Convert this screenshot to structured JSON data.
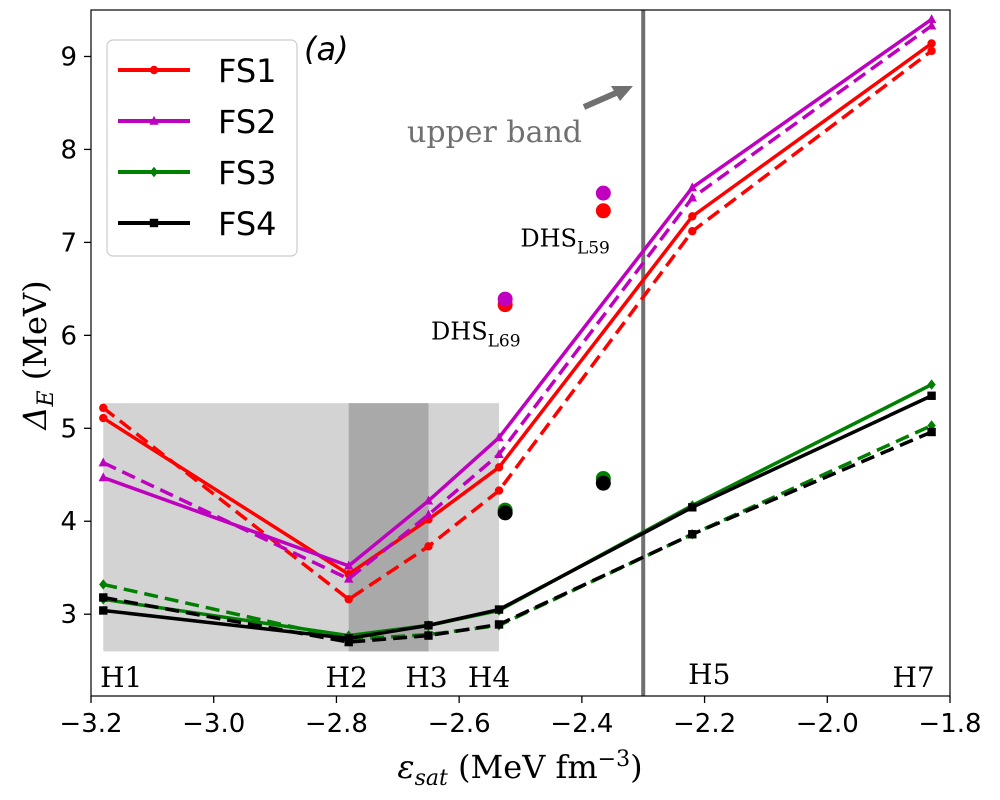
{
  "chart_data": {
    "type": "line",
    "panel_label": "(a)",
    "xlabel": "ε_sat (MeV fm⁻³)",
    "ylabel": "Δ_E (MeV)",
    "xlim": [
      -3.2,
      -1.8
    ],
    "ylim": [
      2.12,
      9.5
    ],
    "x_ticks": [
      -3.2,
      -3.0,
      -2.8,
      -2.6,
      -2.4,
      -2.2,
      -2.0,
      -1.8
    ],
    "x_tick_labels": [
      "−3.2",
      "−3.0",
      "−2.8",
      "−2.6",
      "−2.4",
      "−2.2",
      "−2.0",
      "−1.8"
    ],
    "y_ticks": [
      3,
      4,
      5,
      6,
      7,
      8,
      9
    ],
    "y_tick_labels": [
      "3",
      "4",
      "5",
      "6",
      "7",
      "8",
      "9"
    ],
    "x": [
      -3.18,
      -2.78,
      -2.65,
      -2.535,
      -2.22,
      -1.83
    ],
    "series": [
      {
        "name": "FS1",
        "color": "#ff0000",
        "marker": "circle",
        "solid": [
          5.11,
          3.43,
          4.02,
          4.58,
          7.28,
          9.14
        ],
        "dashed": [
          5.22,
          3.16,
          3.73,
          4.33,
          7.12,
          9.06
        ]
      },
      {
        "name": "FS2",
        "color": "#bf00bf",
        "marker": "triangle",
        "solid": [
          4.47,
          3.52,
          4.22,
          4.9,
          7.59,
          9.4
        ],
        "dashed": [
          4.63,
          3.38,
          4.07,
          4.72,
          7.48,
          9.33
        ]
      },
      {
        "name": "FS3",
        "color": "#008000",
        "marker": "diamond",
        "solid": [
          3.16,
          2.77,
          2.88,
          3.04,
          4.17,
          5.47
        ],
        "dashed": [
          3.32,
          2.73,
          2.78,
          2.88,
          3.86,
          5.03
        ]
      },
      {
        "name": "FS4",
        "color": "#000000",
        "marker": "square",
        "solid": [
          3.04,
          2.74,
          2.88,
          3.05,
          4.15,
          5.35
        ],
        "dashed": [
          3.18,
          2.7,
          2.77,
          2.89,
          3.86,
          4.96
        ]
      }
    ],
    "extra_points": [
      {
        "x": -2.525,
        "y": 6.33,
        "color": "#ff0000"
      },
      {
        "x": -2.525,
        "y": 6.39,
        "color": "#bf00bf"
      },
      {
        "x": -2.525,
        "y": 4.12,
        "color": "#008000"
      },
      {
        "x": -2.525,
        "y": 4.09,
        "color": "#000000"
      },
      {
        "x": -2.365,
        "y": 7.34,
        "color": "#ff0000"
      },
      {
        "x": -2.365,
        "y": 7.53,
        "color": "#bf00bf"
      },
      {
        "x": -2.365,
        "y": 4.46,
        "color": "#008000"
      },
      {
        "x": -2.365,
        "y": 4.41,
        "color": "#000000"
      }
    ],
    "point_labels": [
      {
        "base": "DHS",
        "sub": "L69",
        "x": -2.535,
        "y": 6.0
      },
      {
        "base": "DHS",
        "sub": "L59",
        "x": -2.365,
        "y": 7.0
      }
    ],
    "bands": [
      {
        "x0": -3.18,
        "x1": -2.535,
        "y0": 2.6,
        "y1": 5.27,
        "color": "#d3d3d3"
      },
      {
        "x0": -2.78,
        "x1": -2.65,
        "y0": 2.6,
        "y1": 5.27,
        "color": "#a9a9a9"
      }
    ],
    "vertical_line": {
      "x": -2.3,
      "color": "#707070"
    },
    "upper_band_label": "upper band",
    "model_labels": [
      {
        "text": "H1",
        "x": -3.18
      },
      {
        "text": "H2",
        "x": -2.78
      },
      {
        "text": "H3",
        "x": -2.65
      },
      {
        "text": "H4",
        "x": -2.535
      },
      {
        "text": "H5",
        "x": -2.22
      },
      {
        "text": "H7",
        "x": -1.83
      }
    ],
    "legend_position": "top-left",
    "grid": false
  }
}
